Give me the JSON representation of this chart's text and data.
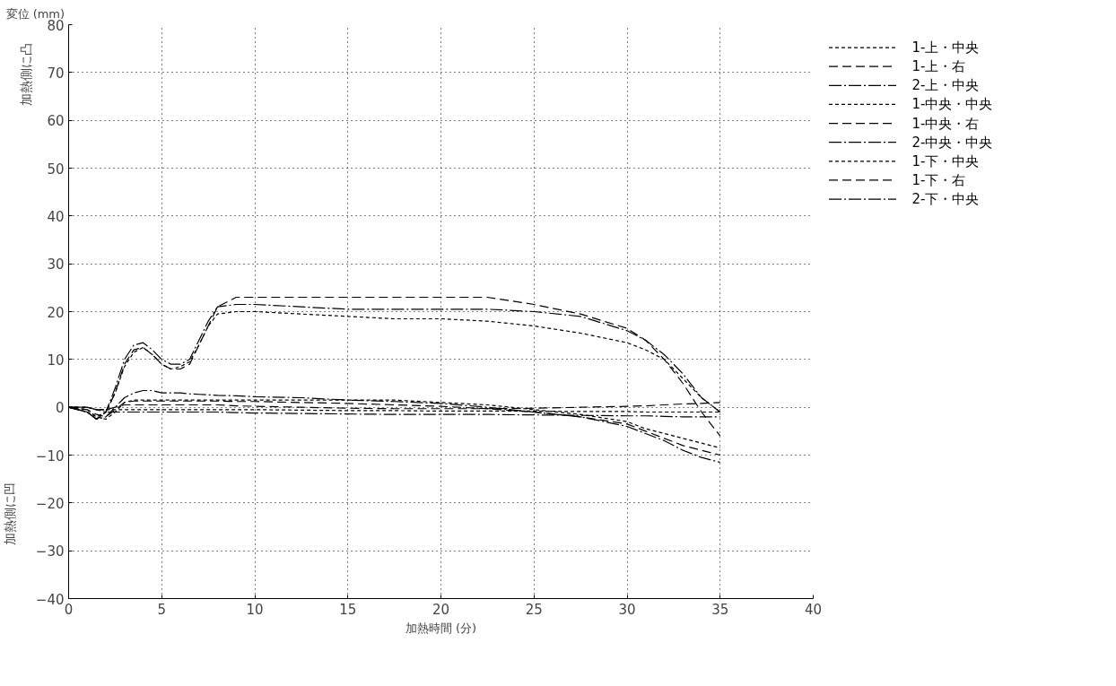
{
  "chart_data": {
    "type": "line",
    "ylabel": "変位 (mm)",
    "xlabel": "加熱時間 (分)",
    "annotations": [
      "加熱側に凸",
      "加熱側に凹"
    ],
    "x": [
      0,
      1,
      1.5,
      2,
      2.5,
      3,
      3.5,
      4,
      4.5,
      5,
      5.5,
      6,
      6.5,
      7,
      7.5,
      8,
      9,
      10,
      12.5,
      15,
      17.5,
      20,
      22.5,
      25,
      27.5,
      30,
      31,
      32,
      33,
      34,
      35
    ],
    "xlim": [
      0,
      40
    ],
    "xticks": [
      0,
      5,
      10,
      15,
      20,
      25,
      30,
      35,
      40
    ],
    "ylim": [
      -40,
      80
    ],
    "yticks": [
      -40,
      -30,
      -20,
      -10,
      0,
      10,
      20,
      30,
      40,
      50,
      60,
      70,
      80
    ],
    "grid": true,
    "legend": "right",
    "marker": "none",
    "series": [
      {
        "name": "1-上・中央",
        "color": "#000000",
        "line_style": "dotted",
        "values": [
          0,
          -1,
          -2,
          -1,
          3,
          8.5,
          11.5,
          12.5,
          11,
          9,
          8,
          8.5,
          9.5,
          13,
          17,
          19.5,
          20,
          20,
          19.5,
          19,
          18.5,
          18.5,
          18,
          17,
          15.5,
          13.5,
          12,
          10,
          6,
          2,
          -1
        ]
      },
      {
        "name": "1-上・右",
        "color": "#000000",
        "line_style": "dashed",
        "values": [
          0,
          -1,
          -2.5,
          -1,
          3,
          9,
          12,
          12.5,
          11,
          9,
          8,
          8,
          9,
          13,
          17,
          21,
          23,
          23,
          23,
          23,
          23,
          23,
          23,
          21.5,
          19.5,
          16.5,
          14,
          10,
          5,
          -1,
          -6
        ]
      },
      {
        "name": "2-上・中央",
        "color": "#000000",
        "line_style": "dashdot",
        "values": [
          0,
          -1,
          -2.5,
          -1,
          4,
          10,
          13,
          13.5,
          12,
          10,
          9,
          9,
          10,
          14,
          18,
          21,
          21.5,
          21.5,
          21,
          20.5,
          20.5,
          20.5,
          20.5,
          20,
          19,
          16,
          14,
          11,
          7,
          2,
          -1
        ]
      },
      {
        "name": "1-中央・中央",
        "color": "#000000",
        "line_style": "dotted",
        "values": [
          0,
          0,
          -0.5,
          -0.5,
          -0.5,
          -0.5,
          -0.5,
          -0.5,
          -0.5,
          -0.5,
          -0.5,
          -0.5,
          -0.5,
          -0.5,
          -0.5,
          -0.5,
          -0.5,
          -0.5,
          -0.6,
          -0.7,
          -0.7,
          -0.8,
          -0.8,
          -0.8,
          -0.9,
          -0.9,
          -1,
          -1,
          -1,
          -1,
          -1
        ]
      },
      {
        "name": "1-中央・右",
        "color": "#000000",
        "line_style": "dashed",
        "values": [
          0,
          0,
          -0.5,
          -0.5,
          0,
          0.5,
          0.5,
          0.5,
          0.5,
          0.5,
          0.5,
          0.5,
          0.5,
          0.5,
          0.5,
          0.5,
          0.3,
          0.2,
          0,
          -0.2,
          -0.3,
          -0.3,
          -0.3,
          -0.2,
          0,
          0.2,
          0.3,
          0.5,
          0.7,
          0.8,
          1
        ]
      },
      {
        "name": "2-中央・中央",
        "color": "#000000",
        "line_style": "dashdot",
        "values": [
          0,
          -1,
          -2.5,
          -2,
          0,
          2,
          3,
          3.5,
          3.5,
          3,
          3,
          3,
          2.8,
          2.7,
          2.6,
          2.5,
          2.4,
          2.2,
          2,
          1.5,
          1.2,
          0.8,
          0,
          -1,
          -2,
          -4,
          -5.5,
          -7,
          -9,
          -10.5,
          -11.5
        ]
      },
      {
        "name": "1-下・中央",
        "color": "#000000",
        "line_style": "dotted",
        "values": [
          0,
          -0.5,
          -2,
          -2.5,
          -1,
          1,
          1.5,
          1.5,
          1.5,
          1.5,
          1.5,
          1.5,
          1.5,
          1.5,
          1.5,
          1.5,
          1.5,
          1.5,
          1.5,
          1.5,
          1.5,
          1,
          0.5,
          -0.5,
          -1.5,
          -3,
          -4.5,
          -5.5,
          -6.5,
          -7.5,
          -8.5
        ]
      },
      {
        "name": "1-下・右",
        "color": "#000000",
        "line_style": "dashed",
        "values": [
          0,
          -0.5,
          -1.5,
          -2,
          -0.5,
          1,
          1.3,
          1.3,
          1.3,
          1.3,
          1.3,
          1.3,
          1.3,
          1.3,
          1.3,
          1.3,
          1.2,
          1.2,
          1,
          0.8,
          0.5,
          0.2,
          -0.3,
          -1,
          -2,
          -3.5,
          -5,
          -6.5,
          -8,
          -9,
          -10
        ]
      },
      {
        "name": "2-下・中央",
        "color": "#000000",
        "line_style": "dashdot",
        "values": [
          0,
          0,
          -0.5,
          -1,
          -1,
          -1,
          -1,
          -1,
          -1,
          -1,
          -1,
          -1,
          -1,
          -1,
          -1,
          -1,
          -1.1,
          -1.2,
          -1.3,
          -1.4,
          -1.5,
          -1.5,
          -1.5,
          -1.6,
          -1.7,
          -1.8,
          -1.8,
          -1.9,
          -2,
          -2,
          -2
        ]
      }
    ]
  }
}
